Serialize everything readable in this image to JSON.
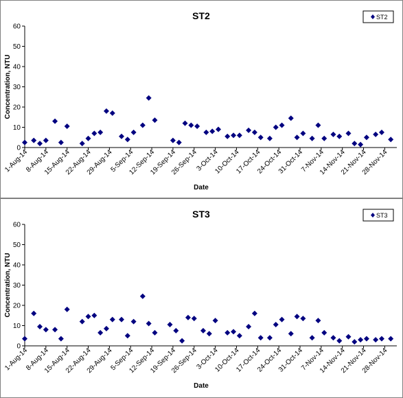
{
  "chart_data": [
    {
      "type": "scatter",
      "title": "ST2",
      "xlabel": "Date",
      "ylabel": "Concentration, NTU",
      "ylim": [
        0,
        60
      ],
      "yticks": [
        "0",
        "10",
        "20",
        "30",
        "40",
        "50",
        "60"
      ],
      "xlim": [
        "1-Aug-14",
        "2-Dec-14"
      ],
      "xticks": [
        "1-Aug-14",
        "8-Aug-14",
        "15-Aug-14",
        "22-Aug-14",
        "29-Aug-14",
        "5-Sep-14",
        "12-Sep-14",
        "19-Sep-14",
        "26-Sep-14",
        "3-Oct-14",
        "10-Oct-14",
        "17-Oct-14",
        "24-Oct-14",
        "31-Oct-14",
        "7-Nov-14",
        "14-Nov-14",
        "21-Nov-14",
        "28-Nov-14"
      ],
      "grid": false,
      "legend_position": "top-right",
      "color": "#000080",
      "marker": "diamond",
      "series": [
        {
          "name": "ST2",
          "x": [
            "1-Aug-14",
            "4-Aug-14",
            "6-Aug-14",
            "8-Aug-14",
            "11-Aug-14",
            "13-Aug-14",
            "15-Aug-14",
            "20-Aug-14",
            "22-Aug-14",
            "24-Aug-14",
            "26-Aug-14",
            "28-Aug-14",
            "30-Aug-14",
            "2-Sep-14",
            "4-Sep-14",
            "6-Sep-14",
            "9-Sep-14",
            "11-Sep-14",
            "13-Sep-14",
            "19-Sep-14",
            "21-Sep-14",
            "23-Sep-14",
            "25-Sep-14",
            "27-Sep-14",
            "30-Sep-14",
            "2-Oct-14",
            "4-Oct-14",
            "7-Oct-14",
            "9-Oct-14",
            "11-Oct-14",
            "14-Oct-14",
            "16-Oct-14",
            "18-Oct-14",
            "21-Oct-14",
            "23-Oct-14",
            "25-Oct-14",
            "28-Oct-14",
            "30-Oct-14",
            "1-Nov-14",
            "4-Nov-14",
            "6-Nov-14",
            "8-Nov-14",
            "11-Nov-14",
            "13-Nov-14",
            "16-Nov-14",
            "18-Nov-14",
            "20-Nov-14",
            "22-Nov-14",
            "25-Nov-14",
            "27-Nov-14",
            "30-Nov-14"
          ],
          "y": [
            2.5,
            3.5,
            2.0,
            3.5,
            13.0,
            2.5,
            10.5,
            2.0,
            4.5,
            7.0,
            7.5,
            18.0,
            17.0,
            5.5,
            4.0,
            7.5,
            11.0,
            24.5,
            13.5,
            3.5,
            2.5,
            12.0,
            11.0,
            10.5,
            7.5,
            8.0,
            9.0,
            5.5,
            6.0,
            6.0,
            8.5,
            7.5,
            5.0,
            4.5,
            10.0,
            11.0,
            14.5,
            5.0,
            7.0,
            4.5,
            11.0,
            4.5,
            6.5,
            5.5,
            7.0,
            2.0,
            1.5,
            5.0,
            6.5,
            7.5,
            4.0
          ]
        }
      ]
    },
    {
      "type": "scatter",
      "title": "ST3",
      "xlabel": "Date",
      "ylabel": "Concentration, NTU",
      "ylim": [
        0,
        60
      ],
      "yticks": [
        "0",
        "10",
        "20",
        "30",
        "40",
        "50",
        "60"
      ],
      "xlim": [
        "1-Aug-14",
        "2-Dec-14"
      ],
      "xticks": [
        "1-Aug-14",
        "8-Aug-14",
        "15-Aug-14",
        "22-Aug-14",
        "29-Aug-14",
        "5-Sep-14",
        "12-Sep-14",
        "19-Sep-14",
        "26-Sep-14",
        "3-Oct-14",
        "10-Oct-14",
        "17-Oct-14",
        "24-Oct-14",
        "31-Oct-14",
        "7-Nov-14",
        "14-Nov-14",
        "21-Nov-14",
        "28-Nov-14"
      ],
      "grid": false,
      "legend_position": "top-right",
      "color": "#000080",
      "marker": "diamond",
      "series": [
        {
          "name": "ST3",
          "x": [
            "1-Aug-14",
            "4-Aug-14",
            "6-Aug-14",
            "8-Aug-14",
            "11-Aug-14",
            "13-Aug-14",
            "15-Aug-14",
            "20-Aug-14",
            "22-Aug-14",
            "24-Aug-14",
            "26-Aug-14",
            "28-Aug-14",
            "30-Aug-14",
            "2-Sep-14",
            "4-Sep-14",
            "6-Sep-14",
            "9-Sep-14",
            "11-Sep-14",
            "13-Sep-14",
            "18-Sep-14",
            "20-Sep-14",
            "22-Sep-14",
            "24-Sep-14",
            "26-Sep-14",
            "29-Sep-14",
            "1-Oct-14",
            "3-Oct-14",
            "7-Oct-14",
            "9-Oct-14",
            "11-Oct-14",
            "14-Oct-14",
            "16-Oct-14",
            "18-Oct-14",
            "21-Oct-14",
            "23-Oct-14",
            "25-Oct-14",
            "28-Oct-14",
            "30-Oct-14",
            "1-Nov-14",
            "4-Nov-14",
            "6-Nov-14",
            "8-Nov-14",
            "11-Nov-14",
            "13-Nov-14",
            "16-Nov-14",
            "18-Nov-14",
            "20-Nov-14",
            "22-Nov-14",
            "25-Nov-14",
            "27-Nov-14",
            "30-Nov-14"
          ],
          "y": [
            3.5,
            16.0,
            9.5,
            8.0,
            8.0,
            3.5,
            18.0,
            12.0,
            14.5,
            15.0,
            6.5,
            8.5,
            13.0,
            13.0,
            5.0,
            12.0,
            24.5,
            11.0,
            6.5,
            10.5,
            7.5,
            2.5,
            14.0,
            13.5,
            7.5,
            6.0,
            12.5,
            6.5,
            7.0,
            5.0,
            9.5,
            16.0,
            4.0,
            4.0,
            10.5,
            13.0,
            6.0,
            14.5,
            13.5,
            4.0,
            12.5,
            6.5,
            4.0,
            2.5,
            4.5,
            2.0,
            3.0,
            3.5,
            3.0,
            3.5,
            3.5
          ]
        }
      ]
    }
  ]
}
